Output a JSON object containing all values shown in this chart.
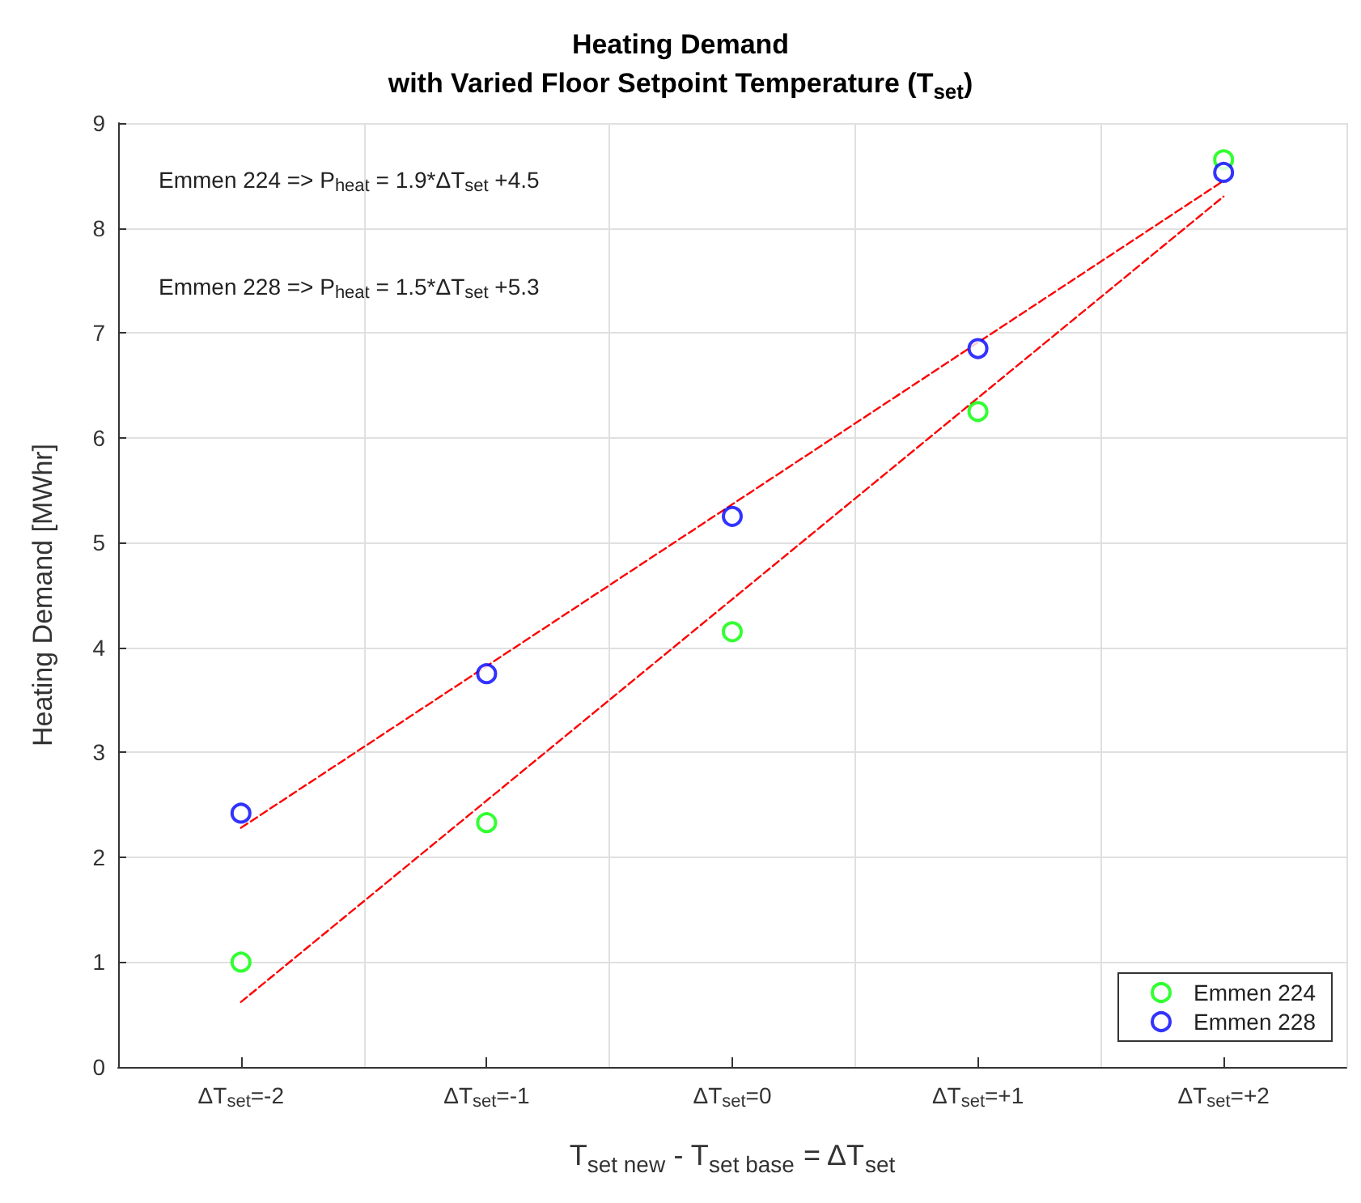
{
  "chart_data": {
    "type": "scatter",
    "title": "Heating Demand",
    "subtitle": "with Varied Floor Setpoint Temperature (T$_{set}$)",
    "xlabel": "T$_{set new}$ - T$_{set base}$ = ΔT$_{set}$",
    "ylabel": "Heating Demand [MWhr]",
    "categories": [
      "ΔT$_{set}$=-2",
      "ΔT$_{set}$=-1",
      "ΔT$_{set}$=0",
      "ΔT$_{set}$=+1",
      "ΔT$_{set}$=+2"
    ],
    "series": [
      {
        "name": "Emmen 224",
        "color": "#00ff00",
        "values": [
          1.0,
          2.33,
          4.15,
          6.25,
          8.65
        ]
      },
      {
        "name": "Emmen 228",
        "color": "#0000ff",
        "values": [
          2.42,
          3.75,
          5.25,
          6.85,
          8.53
        ]
      },
      {
        "type": "line",
        "color": "#ff0000",
        "line_style": "dashed",
        "marker": "none",
        "x": [
          "ΔT$_{set}$=-2",
          "ΔT$_{set}$=+2"
        ],
        "values": [
          0.62,
          8.3
        ]
      },
      {
        "type": "line",
        "color": "#ff0000",
        "line_style": "dashed",
        "marker": "none",
        "x": [
          "ΔT$_{set}$=-2",
          "ΔT$_{set}$=+2"
        ],
        "values": [
          2.28,
          8.45
        ]
      }
    ],
    "annotations": [
      "Emmen 224 => P$_{heat}$ = 1.9*ΔT$_{set}$ +4.5",
      "Emmen 228 => P$_{heat}$ = 1.5*ΔT$_{set}$ +5.3"
    ],
    "ylim": [
      0,
      9
    ],
    "yticks": [
      0,
      1,
      2,
      3,
      4,
      5,
      6,
      7,
      8,
      9
    ],
    "grid": true,
    "legend": "bottom right",
    "marker": "circle"
  }
}
